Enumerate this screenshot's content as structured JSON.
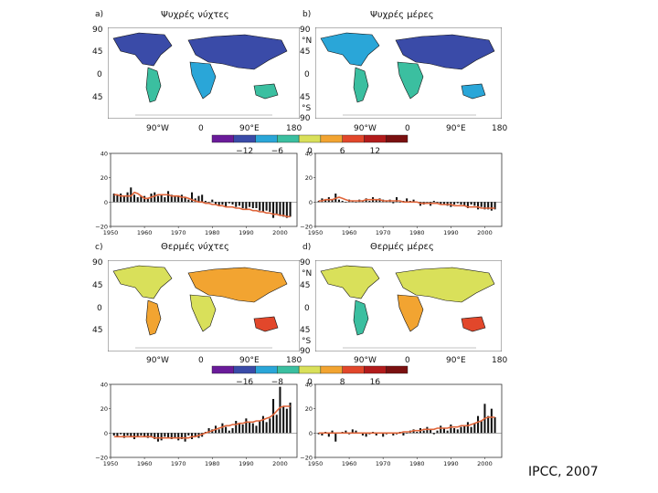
{
  "credit": "IPCC, 2007",
  "panels": [
    {
      "letter": "a)",
      "title": "Ψυχρές νύχτες"
    },
    {
      "letter": "b)",
      "title": "Ψυχρές μέρες"
    },
    {
      "letter": "c)",
      "title": "Θερμές νύχτες"
    },
    {
      "letter": "d)",
      "title": "Θερμές μέρες"
    }
  ],
  "map_axes": {
    "lat_left": [
      "90",
      "45",
      "0",
      "45"
    ],
    "lat_right": [
      "90",
      "°N",
      "45",
      "0",
      "45",
      "°S",
      "90"
    ],
    "lon": [
      "90°W",
      "0",
      "90°E",
      "180"
    ]
  },
  "colorbars": [
    {
      "ticks": [
        "−12",
        "−6",
        "0",
        "6",
        "12"
      ],
      "colors": [
        "#6a1b9a",
        "#3a4ba8",
        "#2aa6d8",
        "#3bbfa0",
        "#d9e05a",
        "#f2a431",
        "#e2472b",
        "#b21b1b",
        "#7a1010"
      ]
    },
    {
      "ticks": [
        "−16",
        "−8",
        "0",
        "8",
        "16"
      ],
      "colors": [
        "#6a1b9a",
        "#3a4ba8",
        "#2aa6d8",
        "#3bbfa0",
        "#d9e05a",
        "#f2a431",
        "#e2472b",
        "#b21b1b",
        "#7a1010"
      ]
    }
  ],
  "chart_data": [
    {
      "type": "bar",
      "title": "Ψυχρές νύχτες",
      "x": [
        1951,
        1952,
        1953,
        1954,
        1955,
        1956,
        1957,
        1958,
        1959,
        1960,
        1961,
        1962,
        1963,
        1964,
        1965,
        1966,
        1967,
        1968,
        1969,
        1970,
        1971,
        1972,
        1973,
        1974,
        1975,
        1976,
        1977,
        1978,
        1979,
        1980,
        1981,
        1982,
        1983,
        1984,
        1985,
        1986,
        1987,
        1988,
        1989,
        1990,
        1991,
        1992,
        1993,
        1994,
        1995,
        1996,
        1997,
        1998,
        1999,
        2000,
        2001,
        2002,
        2003
      ],
      "values": [
        7,
        6,
        7,
        5,
        8,
        12,
        6,
        4,
        5,
        5,
        3,
        7,
        8,
        5,
        6,
        4,
        9,
        6,
        5,
        5,
        6,
        4,
        2,
        8,
        3,
        5,
        6,
        1,
        0,
        2,
        -2,
        -3,
        -2,
        -4,
        -1,
        -2,
        -4,
        -3,
        -5,
        -6,
        -4,
        -5,
        -5,
        -7,
        -8,
        -7,
        -8,
        -13,
        -10,
        -11,
        -12,
        -13,
        -12
      ],
      "trend": [
        6,
        6,
        5,
        5,
        5,
        5,
        8,
        7,
        5,
        3,
        3,
        4,
        5,
        6,
        6,
        6,
        6,
        5,
        5,
        5,
        4,
        4,
        3,
        2,
        1,
        0,
        0,
        -1,
        -1,
        -2,
        -2,
        -3,
        -3,
        -4,
        -4,
        -4,
        -5,
        -5,
        -6,
        -6,
        -6,
        -7,
        -7,
        -8,
        -8,
        -9,
        -9,
        -10,
        -10,
        -11,
        -11,
        -12,
        -12
      ],
      "ylim": [
        -20,
        40
      ],
      "yticks": [
        -20,
        0,
        20,
        40
      ],
      "xticks": [
        1950,
        1960,
        1970,
        1980,
        1990,
        2000
      ]
    },
    {
      "type": "bar",
      "title": "Ψυχρές μέρες",
      "x": [
        1951,
        1952,
        1953,
        1954,
        1955,
        1956,
        1957,
        1958,
        1959,
        1960,
        1961,
        1962,
        1963,
        1964,
        1965,
        1966,
        1967,
        1968,
        1969,
        1970,
        1971,
        1972,
        1973,
        1974,
        1975,
        1976,
        1977,
        1978,
        1979,
        1980,
        1981,
        1982,
        1983,
        1984,
        1985,
        1986,
        1987,
        1988,
        1989,
        1990,
        1991,
        1992,
        1993,
        1994,
        1995,
        1996,
        1997,
        1998,
        1999,
        2000,
        2001,
        2002,
        2003
      ],
      "values": [
        1,
        3,
        2,
        4,
        2,
        7,
        2,
        1,
        0,
        2,
        1,
        0,
        2,
        1,
        3,
        1,
        4,
        2,
        3,
        2,
        1,
        2,
        -1,
        4,
        0,
        1,
        3,
        1,
        2,
        0,
        -3,
        -2,
        0,
        -3,
        1,
        -1,
        -2,
        -2,
        -3,
        -4,
        -2,
        -1,
        -2,
        -3,
        -5,
        -2,
        -3,
        -6,
        -4,
        -6,
        -6,
        -7,
        -6
      ],
      "trend": [
        1,
        1,
        2,
        2,
        2,
        3,
        4,
        3,
        2,
        1,
        1,
        1,
        1,
        1,
        2,
        2,
        2,
        2,
        2,
        1,
        1,
        1,
        1,
        1,
        1,
        0,
        0,
        0,
        0,
        0,
        -1,
        -1,
        -1,
        -1,
        -1,
        -1,
        -2,
        -2,
        -2,
        -2,
        -3,
        -3,
        -3,
        -3,
        -4,
        -4,
        -4,
        -4,
        -5,
        -5,
        -5,
        -5,
        -5
      ],
      "ylim": [
        -20,
        40
      ],
      "yticks": [
        -20,
        0,
        20,
        40
      ],
      "xticks": [
        1950,
        1960,
        1970,
        1980,
        1990,
        2000
      ]
    },
    {
      "type": "bar",
      "title": "Θερμές νύχτες",
      "x": [
        1951,
        1952,
        1953,
        1954,
        1955,
        1956,
        1957,
        1958,
        1959,
        1960,
        1961,
        1962,
        1963,
        1964,
        1965,
        1966,
        1967,
        1968,
        1969,
        1970,
        1971,
        1972,
        1973,
        1974,
        1975,
        1976,
        1977,
        1978,
        1979,
        1980,
        1981,
        1982,
        1983,
        1984,
        1985,
        1986,
        1987,
        1988,
        1989,
        1990,
        1991,
        1992,
        1993,
        1994,
        1995,
        1996,
        1997,
        1998,
        1999,
        2000,
        2001,
        2002,
        2003
      ],
      "values": [
        -2,
        -3,
        -1,
        -4,
        -2,
        -3,
        -5,
        -3,
        -2,
        -3,
        -4,
        -3,
        -5,
        -7,
        -6,
        -3,
        -4,
        -5,
        -4,
        -6,
        -5,
        -7,
        -2,
        -5,
        -3,
        -4,
        -3,
        1,
        4,
        3,
        6,
        3,
        8,
        5,
        2,
        4,
        10,
        8,
        7,
        12,
        9,
        8,
        6,
        10,
        14,
        9,
        12,
        28,
        15,
        38,
        22,
        20,
        25
      ],
      "trend": [
        -3,
        -3,
        -3,
        -3,
        -3,
        -3,
        -3,
        -3,
        -3,
        -3,
        -3,
        -3,
        -4,
        -4,
        -4,
        -4,
        -4,
        -4,
        -4,
        -4,
        -4,
        -4,
        -4,
        -3,
        -3,
        -2,
        -1,
        0,
        1,
        2,
        3,
        4,
        5,
        6,
        6,
        7,
        7,
        8,
        8,
        9,
        9,
        9,
        10,
        10,
        11,
        12,
        13,
        15,
        18,
        21,
        22,
        22,
        22
      ],
      "ylim": [
        -20,
        40
      ],
      "yticks": [
        -20,
        0,
        20,
        40
      ],
      "xticks": [
        1950,
        1960,
        1970,
        1980,
        1990,
        2000
      ]
    },
    {
      "type": "bar",
      "title": "Θερμές μέρες",
      "x": [
        1951,
        1952,
        1953,
        1954,
        1955,
        1956,
        1957,
        1958,
        1959,
        1960,
        1961,
        1962,
        1963,
        1964,
        1965,
        1966,
        1967,
        1968,
        1969,
        1970,
        1971,
        1972,
        1973,
        1974,
        1975,
        1976,
        1977,
        1978,
        1979,
        1980,
        1981,
        1982,
        1983,
        1984,
        1985,
        1986,
        1987,
        1988,
        1989,
        1990,
        1991,
        1992,
        1993,
        1994,
        1995,
        1996,
        1997,
        1998,
        1999,
        2000,
        2001,
        2002,
        2003
      ],
      "values": [
        -1,
        -2,
        1,
        -3,
        2,
        -7,
        0,
        1,
        2,
        -1,
        3,
        2,
        0,
        -2,
        -3,
        -1,
        1,
        -2,
        0,
        -3,
        -1,
        0,
        -2,
        -1,
        1,
        -2,
        0,
        2,
        3,
        1,
        4,
        2,
        5,
        3,
        -1,
        2,
        6,
        4,
        2,
        7,
        4,
        3,
        5,
        6,
        9,
        5,
        8,
        14,
        10,
        24,
        14,
        20,
        13
      ],
      "trend": [
        0,
        0,
        0,
        0,
        0,
        0,
        0,
        0,
        0,
        0,
        0,
        0,
        0,
        0,
        0,
        0,
        0,
        0,
        0,
        0,
        0,
        0,
        0,
        0,
        0,
        1,
        1,
        1,
        2,
        2,
        2,
        3,
        3,
        3,
        3,
        4,
        4,
        4,
        4,
        5,
        5,
        5,
        6,
        6,
        6,
        7,
        8,
        9,
        10,
        12,
        13,
        13,
        13
      ],
      "ylim": [
        -20,
        40
      ],
      "yticks": [
        -20,
        0,
        20,
        40
      ],
      "xticks": [
        1950,
        1960,
        1970,
        1980,
        1990,
        2000
      ]
    }
  ]
}
